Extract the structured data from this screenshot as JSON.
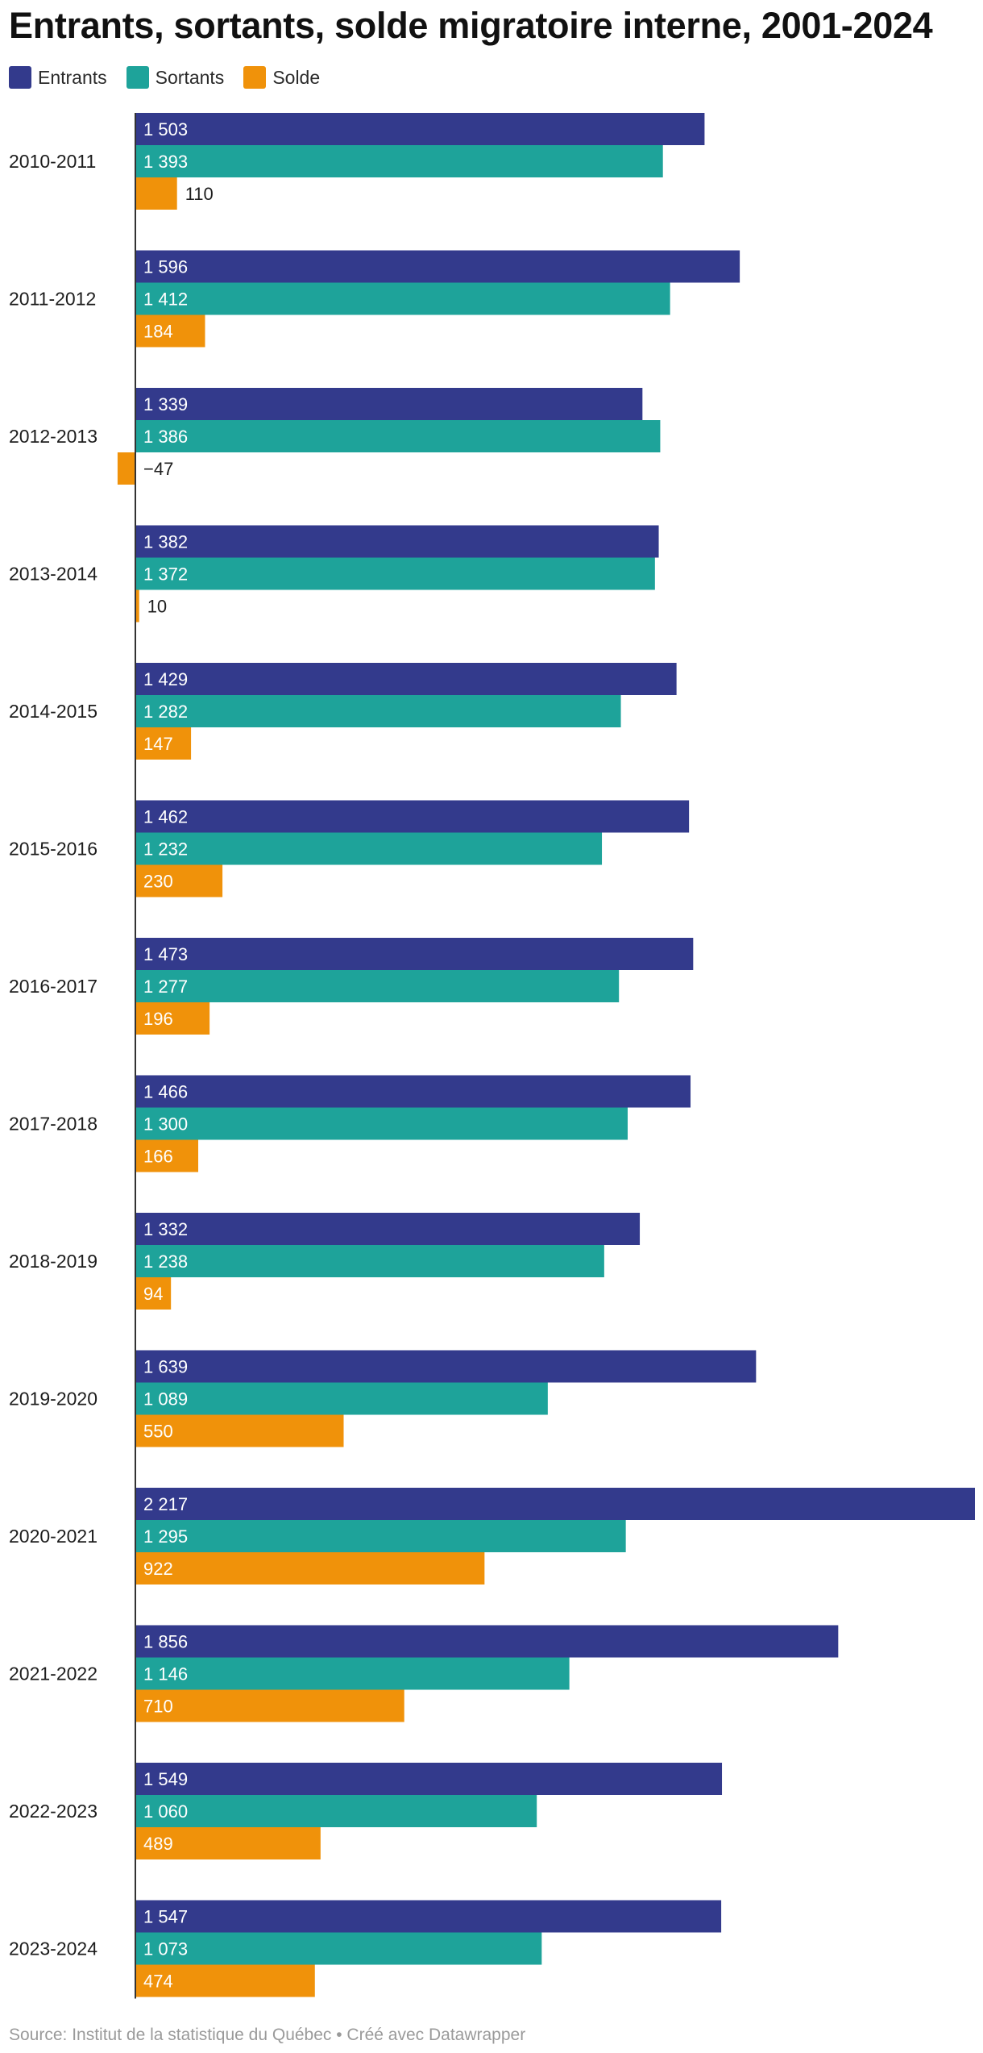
{
  "title": "Entrants, sortants, solde migratoire interne, 2001-2024",
  "footer": "Source: Institut de la statistique du Québec • Créé avec Datawrapper",
  "legend": [
    {
      "label": "Entrants",
      "color": "#333a8c"
    },
    {
      "label": "Sortants",
      "color": "#1ea39a"
    },
    {
      "label": "Solde",
      "color": "#f0920a"
    }
  ],
  "chart_data": {
    "type": "bar",
    "orientation": "horizontal",
    "title": "Entrants, sortants, solde migratoire interne, 2001-2024",
    "categories": [
      "2010-2011",
      "2011-2012",
      "2012-2013",
      "2013-2014",
      "2014-2015",
      "2015-2016",
      "2016-2017",
      "2017-2018",
      "2018-2019",
      "2019-2020",
      "2020-2021",
      "2021-2022",
      "2022-2023",
      "2023-2024"
    ],
    "series": [
      {
        "name": "Entrants",
        "color": "#333a8c",
        "values": [
          1503,
          1596,
          1339,
          1382,
          1429,
          1462,
          1473,
          1466,
          1332,
          1639,
          2217,
          1856,
          1549,
          1547
        ],
        "labels": [
          "1 503",
          "1 596",
          "1 339",
          "1 382",
          "1 429",
          "1 462",
          "1 473",
          "1 466",
          "1 332",
          "1 639",
          "2 217",
          "1 856",
          "1 549",
          "1 547"
        ]
      },
      {
        "name": "Sortants",
        "color": "#1ea39a",
        "values": [
          1393,
          1412,
          1386,
          1372,
          1282,
          1232,
          1277,
          1300,
          1238,
          1089,
          1295,
          1146,
          1060,
          1073
        ],
        "labels": [
          "1 393",
          "1 412",
          "1 386",
          "1 372",
          "1 282",
          "1 232",
          "1 277",
          "1 300",
          "1 238",
          "1 089",
          "1 295",
          "1 146",
          "1 060",
          "1 073"
        ]
      },
      {
        "name": "Solde",
        "color": "#f0920a",
        "values": [
          110,
          184,
          -47,
          10,
          147,
          230,
          196,
          166,
          94,
          550,
          922,
          710,
          489,
          474
        ],
        "labels": [
          "110",
          "184",
          "−47",
          "10",
          "147",
          "230",
          "196",
          "166",
          "94",
          "550",
          "922",
          "710",
          "489",
          "474"
        ]
      }
    ],
    "xlim": [
      -47,
      2217
    ],
    "grid": false,
    "legend_position": "top-left"
  }
}
